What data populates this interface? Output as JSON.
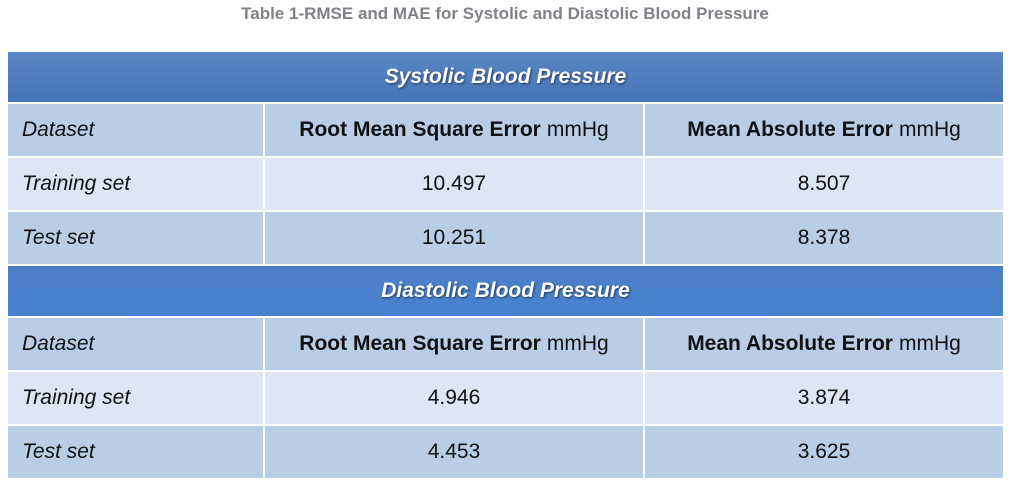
{
  "caption": "Table 1-RMSE and MAE for Systolic and Diastolic Blood Pressure",
  "columns": {
    "dataset": "Dataset",
    "rmse_label": "Root Mean Square Error",
    "mae_label": "Mean Absolute Error",
    "unit": "mmHg"
  },
  "sections": [
    {
      "title": "Systolic Blood Pressure",
      "rows": [
        {
          "dataset": "Training set",
          "rmse": "10.497",
          "mae": "8.507"
        },
        {
          "dataset": "Test set",
          "rmse": "10.251",
          "mae": "8.378"
        }
      ]
    },
    {
      "title": "Diastolic Blood Pressure",
      "rows": [
        {
          "dataset": "Training set",
          "rmse": "4.946",
          "mae": "3.874"
        },
        {
          "dataset": "Test set",
          "rmse": "4.453",
          "mae": "3.625"
        }
      ]
    }
  ],
  "colors": {
    "header_blue": "#4a7cc0",
    "row_dark": "#b9cde6",
    "row_light": "#dde6f2",
    "caption_gray": "#7f8287"
  }
}
